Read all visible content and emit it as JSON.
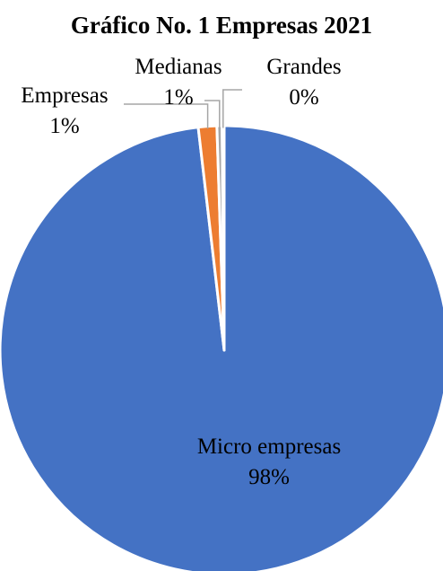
{
  "chart_data": {
    "type": "pie",
    "title": "Gráfico No. 1 Empresas 2021",
    "slices": [
      {
        "name": "Micro empresas",
        "value": 98.15,
        "label": "98%",
        "color": "#4472C4",
        "text_color": "#000000"
      },
      {
        "name": "Empresas",
        "value": 1.33,
        "label": "1%",
        "color": "#ED7D31",
        "text_color": "#000000"
      },
      {
        "name": "Medianas",
        "value": 0.37,
        "label": "1%",
        "color": "#A5A5A5",
        "text_color": "#000000"
      },
      {
        "name": "Grandes",
        "value": 0.15,
        "label": "0%",
        "color": "#7F7F7F",
        "text_color": "#000000"
      }
    ],
    "legend": "none",
    "data_labels": "category name and percentage"
  }
}
